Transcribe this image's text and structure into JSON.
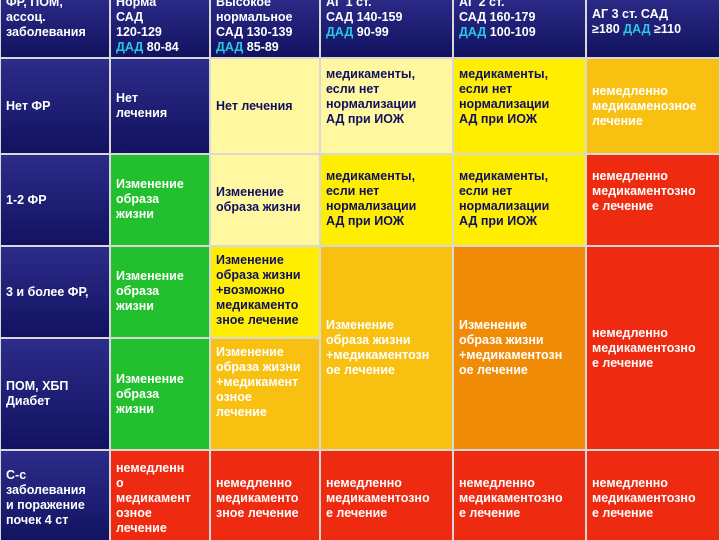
{
  "header": {
    "corner": "ФР, ПОМ,\nассоц.\nзаболевания",
    "col1": {
      "line1": "Норма",
      "sad": "САД\n120-129",
      "dad_label": "ДАД",
      "dad_value": " 80-84"
    },
    "col2": {
      "line1": "Высокое\nнормальное",
      "sad": "САД 130-139",
      "dad_label": "ДАД",
      "dad_value": " 85-89"
    },
    "col3": {
      "line1": "АГ 1 ст.",
      "sad": "САД 140-159",
      "dad_label": "ДАД",
      "dad_value": " 90-99"
    },
    "col4": {
      "line1": "АГ 2 ст.",
      "sad": "САД 160-179",
      "dad_label": "ДАД",
      "dad_value": " 100-109"
    },
    "col5": {
      "line1": "АГ 3 ст. САД\n≥180 ",
      "dad_label": "ДАД",
      "dad_value": " ≥110"
    }
  },
  "rows": {
    "r1": {
      "label": "Нет ФР",
      "c1": "Нет\nлечения",
      "c2": "Нет лечения",
      "c3": "медикаменты,\nесли нет\nнормализации\nАД при ИОЖ",
      "c4": "медикаменты,\nесли нет\nнормализации\nАД при ИОЖ",
      "c5": "немедленно\nмедикаменозное\nлечение"
    },
    "r2": {
      "label": "1-2 ФР",
      "c1": "Изменение\nобраза\nжизни",
      "c2": "Изменение\nобраза жизни",
      "c3": "медикаменты,\nесли нет\nнормализации\nАД при ИОЖ",
      "c4": "медикаменты,\nесли нет\nнормализации\nАД при ИОЖ",
      "c5": "немедленно\nмедикаментозно\nе лечение"
    },
    "r3": {
      "label": "3 и более ФР,",
      "c1": "Изменение\nобраза\nжизни",
      "c2": "Изменение\nобраза жизни\n+возможно\nмедикаменто\nзное лечение"
    },
    "r34": {
      "c3": "Изменение\nобраза жизни\n+медикаментозн\nое лечение",
      "c4": "Изменение\nобраза жизни\n+медикаментозн\nое лечение",
      "c5": "немедленно\nмедикаментозно\nе лечение"
    },
    "r4": {
      "label": "ПОМ, ХБП\nДиабет",
      "c1": "Изменение\nобраза\nжизни",
      "c2": "Изменение\nобраза жизни\n+медикамент\nозное\nлечение"
    },
    "r5": {
      "label": "С-с\nзаболевания\nи поражение\nпочек 4 ст",
      "c1": "немедленн\nо\nмедикамент\nозное\nлечение",
      "c2": "немедленно\nмедикаменто\nзное лечение",
      "c3": "немедленно\nмедикаментозно\nе лечение",
      "c4": "немедленно\nмедикаментозно\nе лечение",
      "c5": "немедленно\nмедикаментозно\nе лечение"
    }
  },
  "colors": {
    "navy": "#1c1c6e",
    "green": "#22c02e",
    "pale_yellow": "#fff8a0",
    "yellow": "#ffee00",
    "amber": "#f8c010",
    "orange": "#f08c08",
    "red": "#ee2a10",
    "accent_blue": "#28c8e8"
  }
}
